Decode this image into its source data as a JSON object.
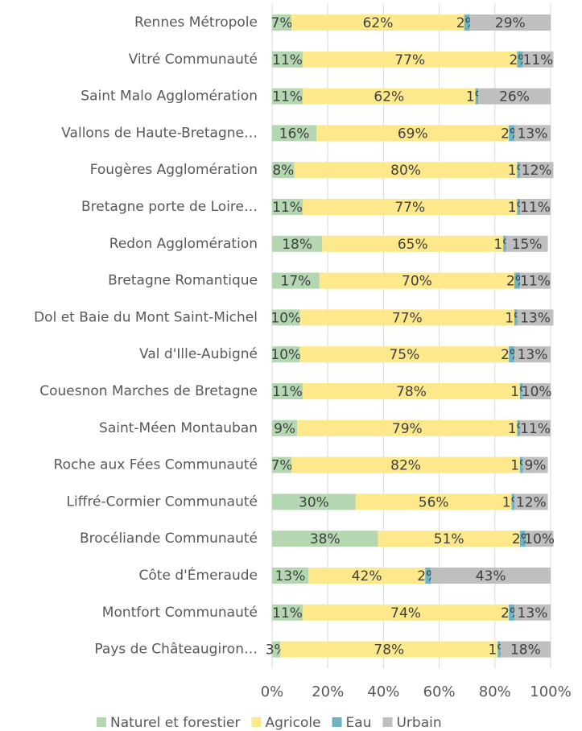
{
  "chart_data": {
    "type": "stacked-horizontal-bar",
    "categories": [
      "Rennes Métropole",
      "Vitré Communauté",
      "Saint Malo Agglomération",
      "Vallons de Haute-Bretagne…",
      "Fougères Agglomération",
      "Bretagne porte de Loire…",
      "Redon Agglomération",
      "Bretagne Romantique",
      "Dol et Baie du Mont Saint-Michel",
      "Val d'Ille-Aubigné",
      "Couesnon Marches de Bretagne",
      "Saint-Méen Montauban",
      "Roche aux Fées Communauté",
      "Liffré-Cormier Communauté",
      "Brocéliande Communauté",
      "Côte d'Émeraude",
      "Montfort Communauté",
      "Pays de Châteaugiron…"
    ],
    "series": [
      {
        "name": "Naturel et forestier",
        "color": "#b4d7b1",
        "values": [
          7,
          11,
          11,
          16,
          8,
          11,
          18,
          17,
          10,
          10,
          11,
          9,
          7,
          30,
          38,
          13,
          11,
          3
        ],
        "value_labels": [
          "7%",
          "11%",
          "11%",
          "16%",
          "8%",
          "11%",
          "18%",
          "17%",
          "10%",
          "10%",
          "11%",
          "9%",
          "7%",
          "30%",
          "38%",
          "13%",
          "11%",
          "3%"
        ]
      },
      {
        "name": "Agricole",
        "color": "#fde98b",
        "values": [
          62,
          77,
          62,
          69,
          80,
          77,
          65,
          70,
          77,
          75,
          78,
          79,
          82,
          56,
          51,
          42,
          74,
          78
        ],
        "value_labels": [
          "62%",
          "77%",
          "62%",
          "69%",
          "80%",
          "77%",
          "65%",
          "70%",
          "77%",
          "75%",
          "78%",
          "79%",
          "82%",
          "56%",
          "51%",
          "42%",
          "74%",
          "78%"
        ]
      },
      {
        "name": "Eau",
        "color": "#6db3c4",
        "values": [
          2,
          2,
          1,
          2,
          1,
          1,
          1,
          2,
          1,
          2,
          1,
          1,
          1,
          1,
          2,
          2,
          2,
          1
        ],
        "value_labels": [
          "2%",
          "2%",
          "1%",
          "2%",
          "1%",
          "1%",
          "1%",
          "2%",
          "1%",
          "2%",
          "1%",
          "1%",
          "1%",
          "1%",
          "2%",
          "2%",
          "2%",
          "1%"
        ]
      },
      {
        "name": "Urbain",
        "color": "#bfbfbf",
        "values": [
          29,
          11,
          26,
          13,
          12,
          11,
          15,
          11,
          13,
          13,
          10,
          11,
          9,
          12,
          10,
          43,
          13,
          18
        ],
        "value_labels": [
          "29%",
          "11%",
          "26%",
          "13%",
          "12%",
          "11%",
          "15%",
          "11%",
          "13%",
          "13%",
          "10%",
          "11%",
          "9%",
          "12%",
          "10%",
          "43%",
          "13%",
          "18%"
        ]
      }
    ],
    "xlim": [
      0,
      100
    ],
    "xticks": [
      {
        "value": 0,
        "label": "0%"
      },
      {
        "value": 20,
        "label": "20%"
      },
      {
        "value": 40,
        "label": "40%"
      },
      {
        "value": 60,
        "label": "60%"
      },
      {
        "value": 80,
        "label": "80%"
      },
      {
        "value": 100,
        "label": "100%"
      }
    ],
    "grid": true,
    "legend": "bottom"
  }
}
